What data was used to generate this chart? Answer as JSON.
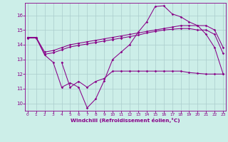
{
  "background_color": "#c8eaе8",
  "bg_hex": "#cceee8",
  "line_color": "#880088",
  "grid_color": "#aacccc",
  "xlabel": "Windchill (Refroidissement éolien,°C)",
  "ylabel_values": [
    10,
    11,
    12,
    13,
    14,
    15,
    16
  ],
  "xlabel_values": [
    0,
    1,
    2,
    3,
    4,
    5,
    6,
    7,
    8,
    9,
    10,
    11,
    12,
    13,
    14,
    15,
    16,
    17,
    18,
    19,
    20,
    21,
    22,
    23
  ],
  "xlim": [
    -0.3,
    23.3
  ],
  "ylim": [
    9.5,
    16.85
  ],
  "series": [
    {
      "x": [
        0,
        1,
        2,
        3,
        4,
        5,
        6,
        7,
        8,
        9,
        10,
        11,
        12,
        13,
        14,
        15,
        16,
        17,
        18,
        19,
        20,
        21,
        22,
        23
      ],
      "y": [
        14.5,
        14.5,
        13.5,
        13.6,
        13.8,
        14.0,
        14.1,
        14.2,
        14.3,
        14.4,
        14.5,
        14.6,
        14.7,
        14.8,
        14.9,
        15.0,
        15.1,
        15.2,
        15.3,
        15.3,
        15.3,
        15.3,
        15.0,
        13.8
      ]
    },
    {
      "x": [
        0,
        1,
        2,
        3,
        4,
        5,
        6,
        7,
        8,
        9,
        10,
        11,
        12,
        13,
        14,
        15,
        16,
        17,
        18,
        19,
        20,
        21,
        22,
        23
      ],
      "y": [
        14.45,
        14.45,
        13.35,
        13.45,
        13.65,
        13.85,
        13.95,
        14.05,
        14.15,
        14.25,
        14.35,
        14.45,
        14.55,
        14.65,
        14.8,
        14.9,
        15.0,
        15.05,
        15.1,
        15.1,
        15.0,
        15.0,
        14.7,
        13.4
      ]
    },
    {
      "x": [
        0,
        1,
        2,
        3,
        4,
        5,
        6,
        7,
        8,
        9,
        10,
        11,
        12,
        13,
        14,
        15,
        16,
        17,
        18,
        19,
        20,
        21,
        22,
        23
      ],
      "y": [
        14.5,
        14.5,
        13.3,
        12.8,
        11.1,
        11.4,
        11.1,
        9.7,
        10.3,
        11.55,
        13.0,
        13.5,
        14.0,
        14.85,
        15.55,
        16.6,
        16.65,
        16.1,
        15.9,
        15.55,
        15.3,
        14.7,
        13.8,
        12.0
      ]
    },
    {
      "x": [
        4,
        5,
        6,
        7,
        8,
        9,
        10,
        11,
        12,
        13,
        14,
        15,
        16,
        17,
        18,
        19,
        20,
        21,
        22,
        23
      ],
      "y": [
        12.8,
        11.1,
        11.5,
        11.1,
        11.5,
        11.7,
        12.2,
        12.2,
        12.2,
        12.2,
        12.2,
        12.2,
        12.2,
        12.2,
        12.2,
        12.1,
        12.05,
        12.0,
        12.0,
        12.0
      ]
    }
  ]
}
